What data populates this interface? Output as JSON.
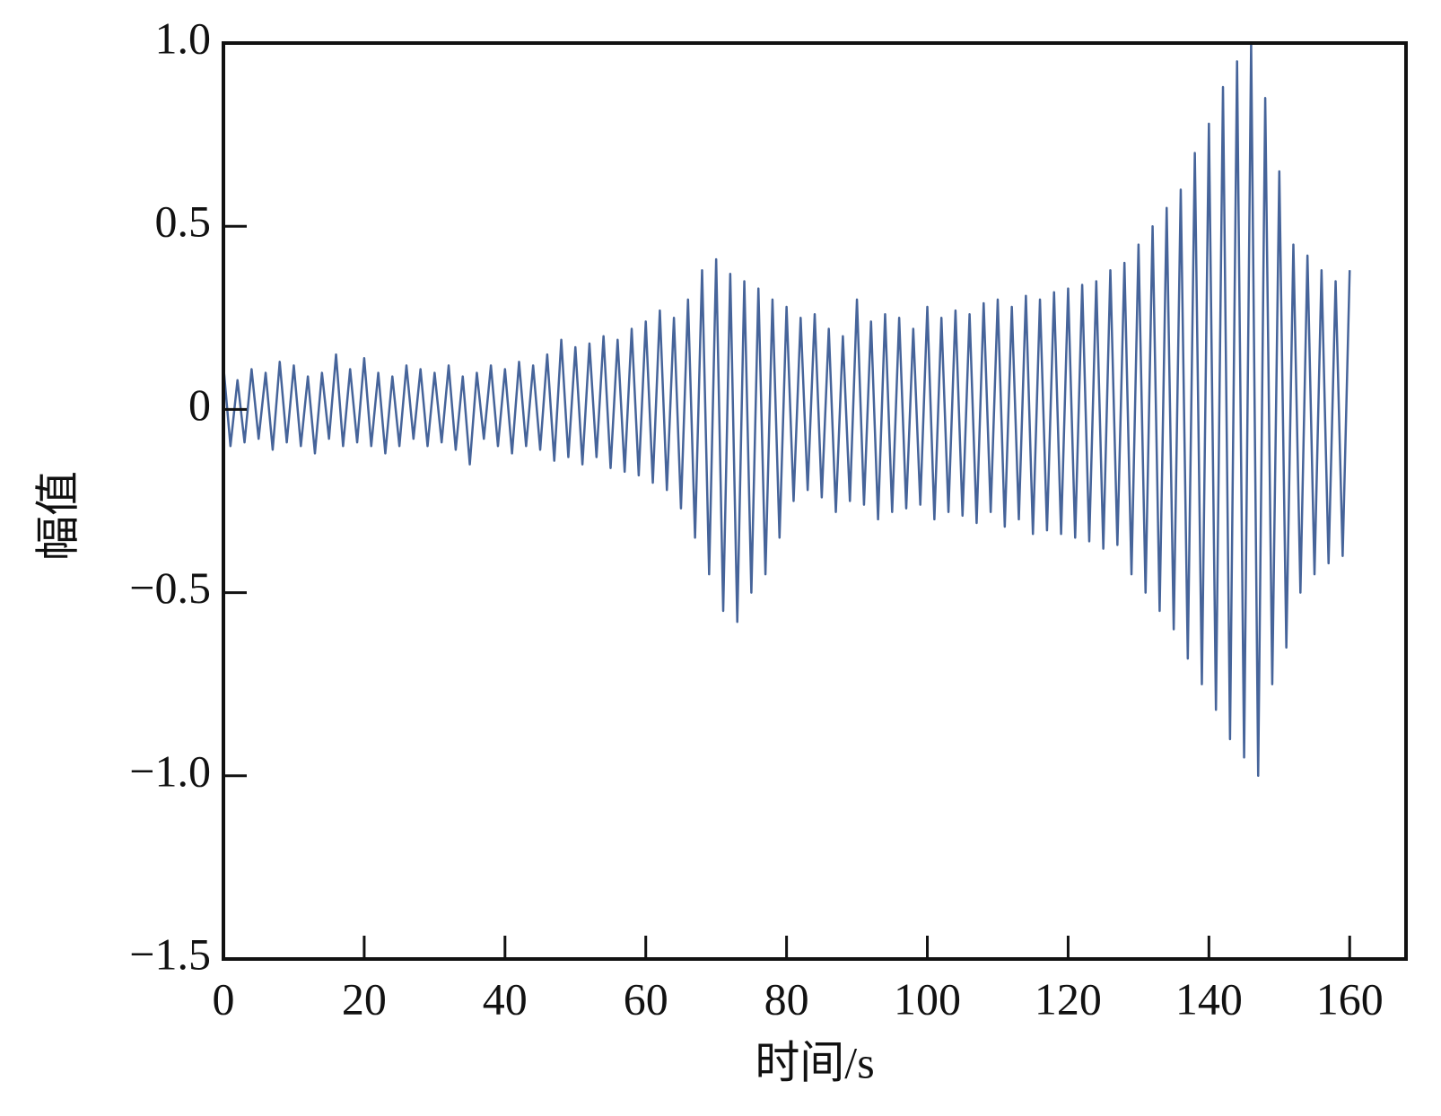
{
  "chart_data": {
    "type": "line",
    "xlabel": "时间/s",
    "ylabel": "幅值",
    "x": [
      0,
      1,
      2,
      3,
      4,
      5,
      6,
      7,
      8,
      9,
      10,
      11,
      12,
      13,
      14,
      15,
      16,
      17,
      18,
      19,
      20,
      21,
      22,
      23,
      24,
      25,
      26,
      27,
      28,
      29,
      30,
      31,
      32,
      33,
      34,
      35,
      36,
      37,
      38,
      39,
      40,
      41,
      42,
      43,
      44,
      45,
      46,
      47,
      48,
      49,
      50,
      51,
      52,
      53,
      54,
      55,
      56,
      57,
      58,
      59,
      60,
      61,
      62,
      63,
      64,
      65,
      66,
      67,
      68,
      69,
      70,
      71,
      72,
      73,
      74,
      75,
      76,
      77,
      78,
      79,
      80,
      81,
      82,
      83,
      84,
      85,
      86,
      87,
      88,
      89,
      90,
      91,
      92,
      93,
      94,
      95,
      96,
      97,
      98,
      99,
      100,
      101,
      102,
      103,
      104,
      105,
      106,
      107,
      108,
      109,
      110,
      111,
      112,
      113,
      114,
      115,
      116,
      117,
      118,
      119,
      120,
      121,
      122,
      123,
      124,
      125,
      126,
      127,
      128,
      129,
      130,
      131,
      132,
      133,
      134,
      135,
      136,
      137,
      138,
      139,
      140,
      141,
      142,
      143,
      144,
      145,
      146,
      147,
      148,
      149,
      150,
      151,
      152,
      153,
      154,
      155,
      156,
      157,
      158,
      159,
      160
    ],
    "series": [
      {
        "color": "#46649a",
        "values": [
          0.12,
          -0.1,
          0.08,
          -0.09,
          0.11,
          -0.08,
          0.1,
          -0.11,
          0.13,
          -0.09,
          0.12,
          -0.1,
          0.09,
          -0.12,
          0.1,
          -0.08,
          0.15,
          -0.1,
          0.11,
          -0.09,
          0.14,
          -0.1,
          0.1,
          -0.12,
          0.09,
          -0.1,
          0.12,
          -0.08,
          0.11,
          -0.1,
          0.1,
          -0.09,
          0.12,
          -0.11,
          0.09,
          -0.15,
          0.1,
          -0.08,
          0.12,
          -0.1,
          0.11,
          -0.12,
          0.13,
          -0.1,
          0.12,
          -0.11,
          0.15,
          -0.14,
          0.19,
          -0.13,
          0.17,
          -0.15,
          0.18,
          -0.13,
          0.2,
          -0.16,
          0.19,
          -0.17,
          0.22,
          -0.18,
          0.24,
          -0.2,
          0.27,
          -0.22,
          0.25,
          -0.27,
          0.3,
          -0.35,
          0.38,
          -0.45,
          0.41,
          -0.55,
          0.37,
          -0.58,
          0.35,
          -0.5,
          0.33,
          -0.45,
          0.3,
          -0.35,
          0.28,
          -0.25,
          0.25,
          -0.22,
          0.26,
          -0.24,
          0.22,
          -0.28,
          0.2,
          -0.25,
          0.3,
          -0.26,
          0.24,
          -0.3,
          0.26,
          -0.28,
          0.25,
          -0.27,
          0.22,
          -0.26,
          0.28,
          -0.3,
          0.25,
          -0.28,
          0.27,
          -0.29,
          0.26,
          -0.31,
          0.29,
          -0.28,
          0.3,
          -0.32,
          0.28,
          -0.3,
          0.31,
          -0.34,
          0.3,
          -0.33,
          0.32,
          -0.34,
          0.33,
          -0.35,
          0.34,
          -0.36,
          0.35,
          -0.38,
          0.38,
          -0.37,
          0.4,
          -0.45,
          0.45,
          -0.5,
          0.5,
          -0.55,
          0.55,
          -0.6,
          0.6,
          -0.68,
          0.7,
          -0.75,
          0.78,
          -0.82,
          0.88,
          -0.9,
          0.95,
          -0.95,
          1.0,
          -1.0,
          0.85,
          -0.75,
          0.65,
          -0.65,
          0.45,
          -0.5,
          0.42,
          -0.45,
          0.38,
          -0.42,
          0.35,
          -0.4,
          0.38
        ]
      }
    ],
    "xlim": [
      0,
      168
    ],
    "xticks": [
      0,
      20,
      40,
      60,
      80,
      100,
      120,
      140,
      160
    ],
    "ylim": [
      -1.5,
      1.0
    ],
    "yticks": [
      {
        "value": -1.5,
        "label": "−1.5"
      },
      {
        "value": -1.0,
        "label": "−1.0"
      },
      {
        "value": -0.5,
        "label": "−0.5"
      },
      0,
      0.5,
      {
        "value": 1.0,
        "label": "1.0"
      }
    ],
    "grid": false
  }
}
